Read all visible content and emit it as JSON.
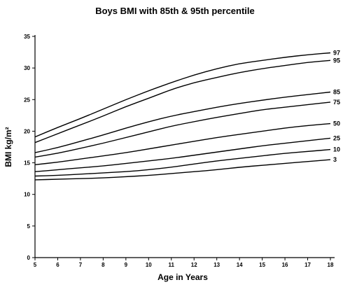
{
  "chart_data": {
    "type": "line",
    "title": "Boys BMI with 85th & 95th percentile",
    "xlabel": "Age in Years",
    "ylabel": "BMI kg/m²",
    "xlim": [
      5,
      18
    ],
    "ylim": [
      0,
      35
    ],
    "xticks": [
      5,
      6,
      7,
      8,
      9,
      10,
      11,
      12,
      13,
      14,
      15,
      16,
      17,
      18
    ],
    "yticks": [
      0,
      5,
      10,
      15,
      20,
      25,
      30,
      35
    ],
    "grid": false,
    "x": [
      5,
      6,
      7,
      8,
      9,
      10,
      11,
      12,
      13,
      14,
      15,
      16,
      17,
      18
    ],
    "series": [
      {
        "name": "97",
        "values": [
          19.1,
          20.6,
          22.0,
          23.5,
          25.0,
          26.4,
          27.7,
          28.9,
          29.9,
          30.7,
          31.2,
          31.7,
          32.1,
          32.4
        ]
      },
      {
        "name": "95",
        "values": [
          18.2,
          19.6,
          21.0,
          22.4,
          23.9,
          25.2,
          26.6,
          27.7,
          28.5,
          29.3,
          29.9,
          30.4,
          30.9,
          31.2
        ]
      },
      {
        "name": "85",
        "values": [
          16.6,
          17.4,
          18.4,
          19.4,
          20.5,
          21.5,
          22.4,
          23.1,
          23.8,
          24.4,
          24.9,
          25.4,
          25.8,
          26.2
        ]
      },
      {
        "name": "75",
        "values": [
          15.9,
          16.5,
          17.3,
          18.1,
          19.0,
          19.9,
          20.8,
          21.5,
          22.2,
          22.8,
          23.4,
          23.8,
          24.2,
          24.6
        ]
      },
      {
        "name": "50",
        "values": [
          14.7,
          15.1,
          15.6,
          16.1,
          16.6,
          17.2,
          17.8,
          18.4,
          19.0,
          19.5,
          20.0,
          20.5,
          20.9,
          21.2
        ]
      },
      {
        "name": "25",
        "values": [
          13.6,
          13.9,
          14.2,
          14.5,
          14.9,
          15.3,
          15.7,
          16.2,
          16.7,
          17.2,
          17.7,
          18.1,
          18.5,
          18.9
        ]
      },
      {
        "name": "10",
        "values": [
          12.9,
          13.0,
          13.2,
          13.4,
          13.6,
          13.9,
          14.3,
          14.8,
          15.3,
          15.7,
          16.1,
          16.5,
          16.8,
          17.1
        ]
      },
      {
        "name": "3",
        "values": [
          12.3,
          12.4,
          12.5,
          12.6,
          12.8,
          13.0,
          13.3,
          13.6,
          13.9,
          14.3,
          14.6,
          14.9,
          15.2,
          15.5
        ]
      }
    ]
  }
}
